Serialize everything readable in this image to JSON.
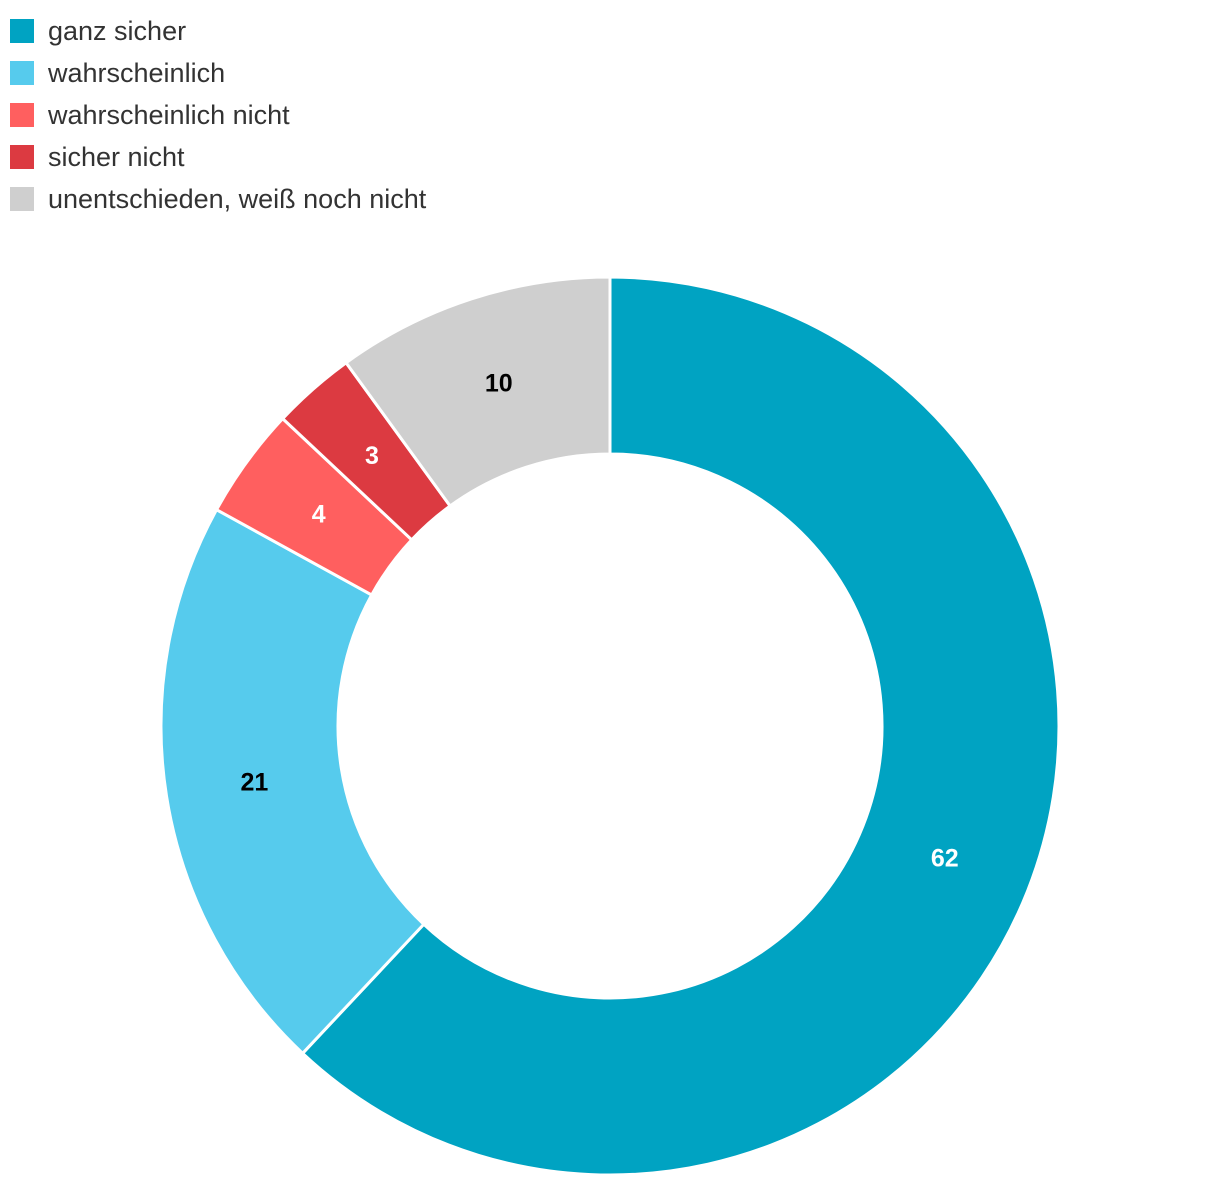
{
  "chart_data": {
    "type": "pie",
    "variant": "donut",
    "legend_position": "top-left",
    "categories": [
      "ganz sicher",
      "wahrscheinlich",
      "wahrscheinlich nicht",
      "sicher nicht",
      "unentschieden, weiß noch nicht"
    ],
    "values": [
      62,
      21,
      4,
      3,
      10
    ],
    "data_labels": [
      "62",
      "21",
      "4",
      "3",
      "10"
    ],
    "colors": [
      "#00a3c2",
      "#56cbed",
      "#ff5f5f",
      "#dc3a41",
      "#cfcfcf"
    ],
    "label_colors": [
      "#ffffff",
      "#000000",
      "#ffffff",
      "#ffffff",
      "#000000"
    ]
  }
}
